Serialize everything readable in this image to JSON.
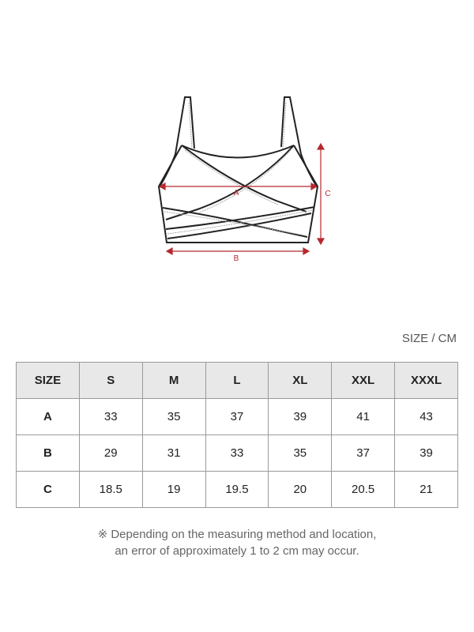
{
  "diagram": {
    "labels": {
      "a": "A",
      "b": "B",
      "c": "C"
    },
    "measure_color": "#b5282e"
  },
  "unit_label": "SIZE / CM",
  "table": {
    "headers": [
      "SIZE",
      "S",
      "M",
      "L",
      "XL",
      "XXL",
      "XXXL"
    ],
    "rows": [
      {
        "label": "A",
        "values": [
          "33",
          "35",
          "37",
          "39",
          "41",
          "43"
        ]
      },
      {
        "label": "B",
        "values": [
          "29",
          "31",
          "33",
          "35",
          "37",
          "39"
        ]
      },
      {
        "label": "C",
        "values": [
          "18.5",
          "19",
          "19.5",
          "20",
          "20.5",
          "21"
        ]
      }
    ]
  },
  "note": {
    "line1": "※ Depending on the measuring method and location,",
    "line2": "an error of approximately 1 to 2 cm may occur."
  }
}
